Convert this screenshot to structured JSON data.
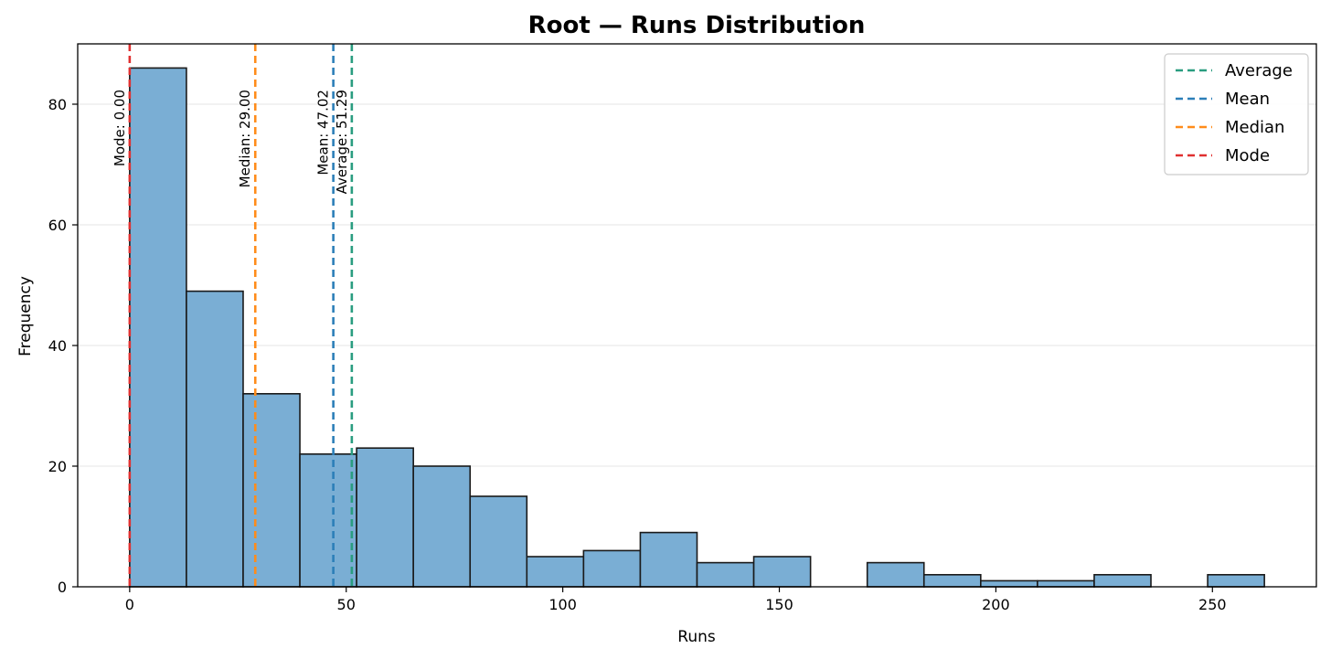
{
  "chart_data": {
    "type": "bar",
    "title": "Root — Runs Distribution",
    "xlabel": "Runs",
    "ylabel": "Frequency",
    "xlim": [
      -12,
      274
    ],
    "ylim": [
      0,
      90
    ],
    "xticks": [
      0,
      50,
      100,
      150,
      200,
      250
    ],
    "yticks": [
      0,
      20,
      40,
      60,
      80
    ],
    "grid": "y",
    "bar_color": "#7aaed4",
    "bar_edge_color": "#1a1a1a",
    "bins": [
      {
        "x0": 0,
        "x1": 13.1,
        "count": 86
      },
      {
        "x0": 13.1,
        "x1": 26.2,
        "count": 49
      },
      {
        "x0": 26.2,
        "x1": 39.3,
        "count": 32
      },
      {
        "x0": 39.3,
        "x1": 52.4,
        "count": 22
      },
      {
        "x0": 52.4,
        "x1": 65.5,
        "count": 23
      },
      {
        "x0": 65.5,
        "x1": 78.6,
        "count": 20
      },
      {
        "x0": 78.6,
        "x1": 91.7,
        "count": 15
      },
      {
        "x0": 91.7,
        "x1": 104.8,
        "count": 5
      },
      {
        "x0": 104.8,
        "x1": 117.9,
        "count": 6
      },
      {
        "x0": 117.9,
        "x1": 131.0,
        "count": 9
      },
      {
        "x0": 131.0,
        "x1": 144.1,
        "count": 4
      },
      {
        "x0": 144.1,
        "x1": 157.2,
        "count": 5
      },
      {
        "x0": 157.2,
        "x1": 170.3,
        "count": 0
      },
      {
        "x0": 170.3,
        "x1": 183.4,
        "count": 4
      },
      {
        "x0": 183.4,
        "x1": 196.5,
        "count": 2
      },
      {
        "x0": 196.5,
        "x1": 209.6,
        "count": 1
      },
      {
        "x0": 209.6,
        "x1": 222.7,
        "count": 1
      },
      {
        "x0": 222.7,
        "x1": 235.8,
        "count": 2
      },
      {
        "x0": 235.8,
        "x1": 248.9,
        "count": 0
      },
      {
        "x0": 248.9,
        "x1": 262.0,
        "count": 2
      }
    ],
    "reference_lines": [
      {
        "name": "Average",
        "value": 51.29,
        "color": "#2a9d80",
        "label": "Average: 51.29"
      },
      {
        "name": "Mean",
        "value": 47.02,
        "color": "#2c7fb8",
        "label": "Mean: 47.02"
      },
      {
        "name": "Median",
        "value": 29.0,
        "color": "#ff8c1a",
        "label": "Median: 29.00"
      },
      {
        "name": "Mode",
        "value": 0.0,
        "color": "#e03030",
        "label": "Mode: 0.00"
      }
    ],
    "legend": {
      "placement": "top-right",
      "entries": [
        "Average",
        "Mean",
        "Median",
        "Mode"
      ]
    }
  }
}
